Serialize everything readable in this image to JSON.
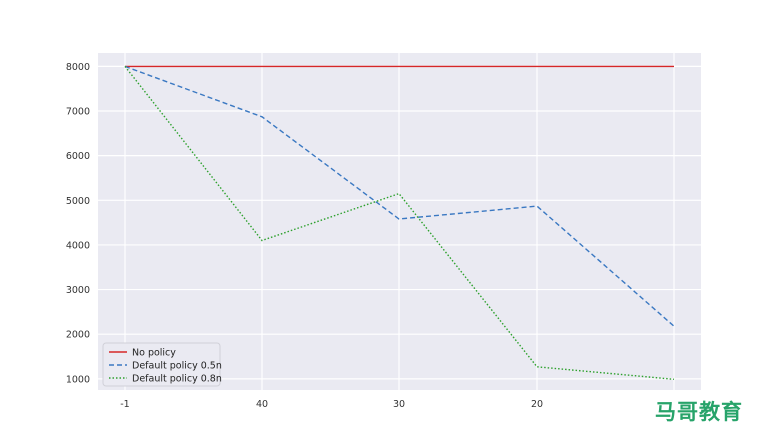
{
  "chart_data": {
    "type": "line",
    "title": "",
    "xlabel": "",
    "ylabel": "",
    "categories": [
      "-1",
      "40",
      "30",
      "20",
      ""
    ],
    "ylim": [
      750,
      8300
    ],
    "yticks": [
      1000,
      2000,
      3000,
      4000,
      5000,
      6000,
      7000,
      8000
    ],
    "grid": true,
    "legend_position": "bottom-left",
    "series": [
      {
        "name": "No policy",
        "values": [
          8000,
          8000,
          8000,
          8000,
          8000
        ],
        "color": "#d62728",
        "dash": "solid"
      },
      {
        "name": "Default policy 0.5n",
        "values": [
          8000,
          6870,
          4580,
          4870,
          2180
        ],
        "color": "#3a78c2",
        "dash": "dashed"
      },
      {
        "name": "Default policy 0.8n",
        "values": [
          8000,
          4100,
          5150,
          1270,
          990
        ],
        "color": "#2ca02c",
        "dash": "dotted"
      }
    ]
  },
  "watermark": {
    "text": "马哥教育"
  }
}
